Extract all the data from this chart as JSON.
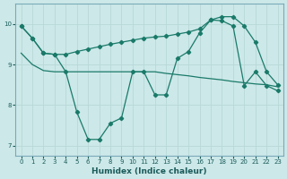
{
  "xlabel": "Humidex (Indice chaleur)",
  "xlim": [
    -0.5,
    23.5
  ],
  "ylim": [
    6.75,
    10.5
  ],
  "yticks": [
    7,
    8,
    9,
    10
  ],
  "xticks": [
    0,
    1,
    2,
    3,
    4,
    5,
    6,
    7,
    8,
    9,
    10,
    11,
    12,
    13,
    14,
    15,
    16,
    17,
    18,
    19,
    20,
    21,
    22,
    23
  ],
  "bg_color": "#cce8e8",
  "grid_color": "#b8d8d8",
  "line_color": "#1a7a6a",
  "zigzag_x": [
    0,
    1,
    2,
    3,
    4,
    5,
    6,
    7,
    8,
    9,
    10,
    11,
    12,
    13,
    14,
    15,
    16,
    17,
    18,
    19,
    20,
    21,
    22,
    23
  ],
  "zigzag_y": [
    9.95,
    9.65,
    9.28,
    9.25,
    8.82,
    7.82,
    7.15,
    7.15,
    7.55,
    7.68,
    8.82,
    8.82,
    8.25,
    8.25,
    9.15,
    9.32,
    9.78,
    10.1,
    10.08,
    9.95,
    8.48,
    8.82,
    8.48,
    8.35
  ],
  "upper_x": [
    0,
    1,
    2,
    3,
    4,
    5,
    6,
    7,
    8,
    9,
    10,
    11,
    12,
    13,
    14,
    15,
    16,
    17,
    18,
    19,
    20,
    21,
    22,
    23
  ],
  "upper_y": [
    9.95,
    9.65,
    9.28,
    9.25,
    9.25,
    9.32,
    9.38,
    9.44,
    9.5,
    9.55,
    9.6,
    9.65,
    9.68,
    9.7,
    9.75,
    9.8,
    9.88,
    10.1,
    10.18,
    10.18,
    9.95,
    9.55,
    8.82,
    8.5
  ],
  "flat_x": [
    0,
    1,
    2,
    3,
    4,
    5,
    6,
    7,
    8,
    9,
    10,
    11,
    12,
    13,
    14,
    15,
    16,
    17,
    18,
    19,
    20,
    21,
    22,
    23
  ],
  "flat_y": [
    9.28,
    9.0,
    8.85,
    8.82,
    8.82,
    8.82,
    8.82,
    8.82,
    8.82,
    8.82,
    8.82,
    8.82,
    8.82,
    8.78,
    8.75,
    8.72,
    8.68,
    8.65,
    8.62,
    8.58,
    8.55,
    8.52,
    8.5,
    8.45
  ]
}
